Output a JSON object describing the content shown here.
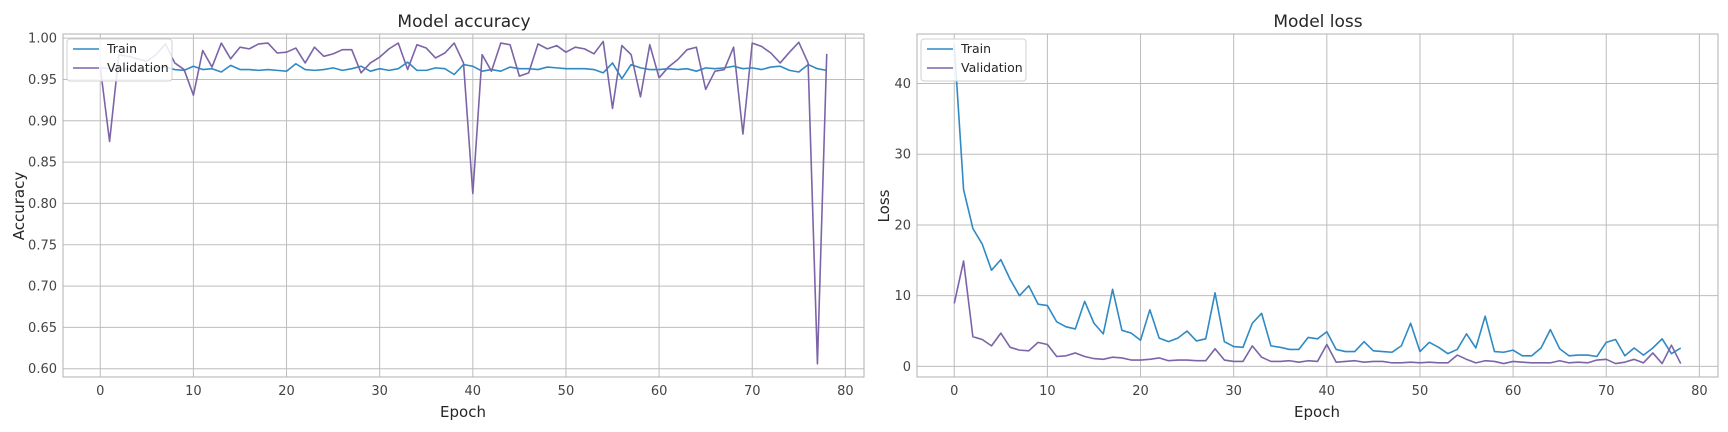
{
  "figure": {
    "accent_train": "#2f8ac4",
    "accent_val": "#7b64a8"
  },
  "chart_data": [
    {
      "type": "line",
      "title": "Model accuracy",
      "xlabel": "Epoch",
      "ylabel": "Accuracy",
      "xlim": [
        -4,
        82
      ],
      "ylim": [
        0.59,
        1.005
      ],
      "xticks": [
        0,
        10,
        20,
        30,
        40,
        50,
        60,
        70,
        80
      ],
      "yticks": [
        0.6,
        0.65,
        0.7,
        0.75,
        0.8,
        0.85,
        0.9,
        0.95,
        1.0
      ],
      "ytick_labels": [
        "0.60",
        "0.65",
        "0.70",
        "0.75",
        "0.80",
        "0.85",
        "0.90",
        "0.95",
        "1.00"
      ],
      "grid": true,
      "legend": "top-left",
      "x": [
        0,
        1,
        2,
        3,
        4,
        5,
        6,
        7,
        8,
        9,
        10,
        11,
        12,
        13,
        14,
        15,
        16,
        17,
        18,
        19,
        20,
        21,
        22,
        23,
        24,
        25,
        26,
        27,
        28,
        29,
        30,
        31,
        32,
        33,
        34,
        35,
        36,
        37,
        38,
        39,
        40,
        41,
        42,
        43,
        44,
        45,
        46,
        47,
        48,
        49,
        50,
        51,
        52,
        53,
        54,
        55,
        56,
        57,
        58,
        59,
        60,
        61,
        62,
        63,
        64,
        65,
        66,
        67,
        68,
        69,
        70,
        71,
        72,
        73,
        74,
        75,
        76,
        77,
        78
      ],
      "series": [
        {
          "name": "Train",
          "color": "#2f8ac4",
          "values": [
            0.964,
            0.963,
            0.962,
            0.963,
            0.962,
            0.961,
            0.964,
            0.965,
            0.962,
            0.961,
            0.966,
            0.962,
            0.963,
            0.959,
            0.967,
            0.962,
            0.962,
            0.961,
            0.962,
            0.961,
            0.96,
            0.969,
            0.962,
            0.961,
            0.962,
            0.964,
            0.961,
            0.963,
            0.966,
            0.96,
            0.963,
            0.961,
            0.963,
            0.971,
            0.961,
            0.961,
            0.964,
            0.963,
            0.956,
            0.968,
            0.966,
            0.96,
            0.962,
            0.96,
            0.965,
            0.963,
            0.963,
            0.962,
            0.965,
            0.964,
            0.963,
            0.963,
            0.963,
            0.962,
            0.958,
            0.97,
            0.951,
            0.968,
            0.964,
            0.962,
            0.962,
            0.963,
            0.962,
            0.963,
            0.96,
            0.964,
            0.963,
            0.964,
            0.966,
            0.963,
            0.964,
            0.962,
            0.965,
            0.966,
            0.961,
            0.959,
            0.968,
            0.963,
            0.961
          ]
        },
        {
          "name": "Validation",
          "color": "#7b64a8",
          "values": [
            0.965,
            0.875,
            0.98,
            0.978,
            0.975,
            0.972,
            0.98,
            0.993,
            0.97,
            0.962,
            0.931,
            0.985,
            0.965,
            0.994,
            0.975,
            0.989,
            0.987,
            0.993,
            0.994,
            0.982,
            0.983,
            0.988,
            0.97,
            0.989,
            0.978,
            0.981,
            0.986,
            0.986,
            0.958,
            0.97,
            0.977,
            0.987,
            0.994,
            0.962,
            0.992,
            0.988,
            0.976,
            0.982,
            0.994,
            0.97,
            0.812,
            0.98,
            0.96,
            0.994,
            0.992,
            0.954,
            0.958,
            0.993,
            0.987,
            0.991,
            0.983,
            0.989,
            0.987,
            0.981,
            0.996,
            0.915,
            0.991,
            0.98,
            0.929,
            0.992,
            0.952,
            0.965,
            0.974,
            0.986,
            0.989,
            0.938,
            0.96,
            0.962,
            0.989,
            0.884,
            0.994,
            0.99,
            0.982,
            0.97,
            0.983,
            0.995,
            0.97,
            0.606,
            0.981
          ]
        }
      ]
    },
    {
      "type": "line",
      "title": "Model loss",
      "xlabel": "Epoch",
      "ylabel": "Loss",
      "xlim": [
        -4,
        82
      ],
      "ylim": [
        -1.5,
        47
      ],
      "xticks": [
        0,
        10,
        20,
        30,
        40,
        50,
        60,
        70,
        80
      ],
      "yticks": [
        0,
        10,
        20,
        30,
        40
      ],
      "ytick_labels": [
        "0",
        "10",
        "20",
        "30",
        "40"
      ],
      "grid": true,
      "legend": "top-left",
      "x": [
        0,
        1,
        2,
        3,
        4,
        5,
        6,
        7,
        8,
        9,
        10,
        11,
        12,
        13,
        14,
        15,
        16,
        17,
        18,
        19,
        20,
        21,
        22,
        23,
        24,
        25,
        26,
        27,
        28,
        29,
        30,
        31,
        32,
        33,
        34,
        35,
        36,
        37,
        38,
        39,
        40,
        41,
        42,
        43,
        44,
        45,
        46,
        47,
        48,
        49,
        50,
        51,
        52,
        53,
        54,
        55,
        56,
        57,
        58,
        59,
        60,
        61,
        62,
        63,
        64,
        65,
        66,
        67,
        68,
        69,
        70,
        71,
        72,
        73,
        74,
        75,
        76,
        77,
        78
      ],
      "series": [
        {
          "name": "Train",
          "color": "#2f8ac4",
          "values": [
            45.5,
            25.0,
            19.5,
            17.3,
            13.6,
            15.1,
            12.3,
            10.0,
            11.4,
            8.8,
            8.6,
            6.3,
            5.6,
            5.3,
            9.2,
            6.1,
            4.6,
            10.9,
            5.1,
            4.7,
            3.7,
            8.0,
            4.0,
            3.5,
            4.0,
            5.0,
            3.6,
            3.9,
            10.4,
            3.5,
            2.8,
            2.7,
            6.1,
            7.5,
            2.9,
            2.7,
            2.4,
            2.4,
            4.1,
            3.9,
            4.9,
            2.4,
            2.1,
            2.1,
            3.5,
            2.2,
            2.1,
            2.0,
            2.9,
            6.1,
            2.1,
            3.4,
            2.7,
            1.8,
            2.4,
            4.6,
            2.6,
            7.1,
            2.1,
            2.0,
            2.3,
            1.5,
            1.5,
            2.6,
            5.2,
            2.5,
            1.5,
            1.6,
            1.6,
            1.4,
            3.4,
            3.8,
            1.5,
            2.6,
            1.6,
            2.6,
            3.9,
            1.8,
            2.6
          ]
        },
        {
          "name": "Validation",
          "color": "#7b64a8",
          "values": [
            8.9,
            14.9,
            4.2,
            3.8,
            2.9,
            4.7,
            2.7,
            2.3,
            2.2,
            3.4,
            3.1,
            1.4,
            1.5,
            1.9,
            1.4,
            1.1,
            1.0,
            1.3,
            1.2,
            0.9,
            0.9,
            1.0,
            1.2,
            0.8,
            0.9,
            0.9,
            0.8,
            0.8,
            2.5,
            0.9,
            0.7,
            0.7,
            2.9,
            1.3,
            0.7,
            0.7,
            0.8,
            0.6,
            0.8,
            0.7,
            3.1,
            0.6,
            0.7,
            0.8,
            0.6,
            0.7,
            0.7,
            0.5,
            0.5,
            0.6,
            0.5,
            0.6,
            0.5,
            0.5,
            1.6,
            1.0,
            0.5,
            0.8,
            0.7,
            0.4,
            0.7,
            0.6,
            0.5,
            0.5,
            0.5,
            0.8,
            0.5,
            0.6,
            0.5,
            0.9,
            1.0,
            0.4,
            0.6,
            1.0,
            0.5,
            1.9,
            0.4,
            3.0,
            0.4
          ]
        }
      ]
    }
  ]
}
